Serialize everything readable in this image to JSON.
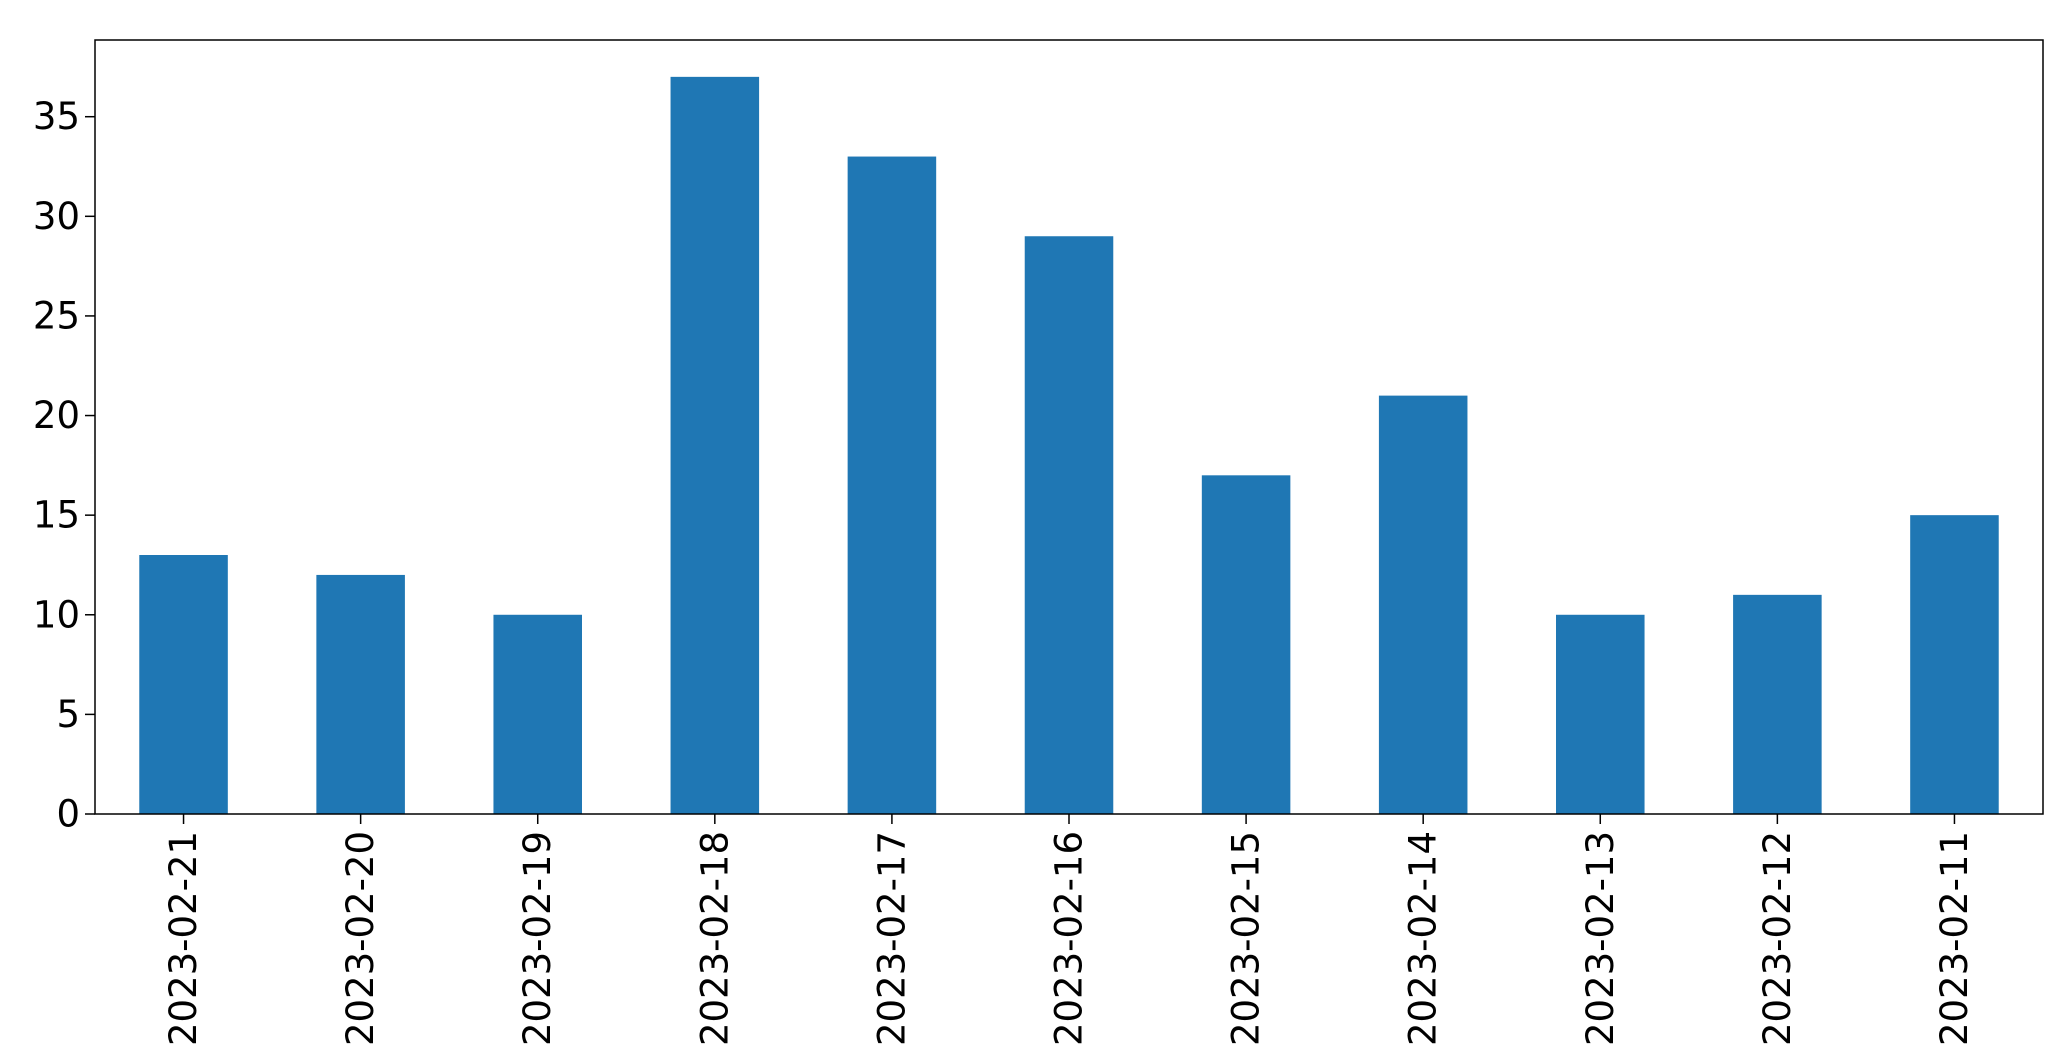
{
  "chart_data": {
    "type": "bar",
    "title": "",
    "xlabel": "",
    "ylabel": "",
    "categories": [
      "2023-02-21",
      "2023-02-20",
      "2023-02-19",
      "2023-02-18",
      "2023-02-17",
      "2023-02-16",
      "2023-02-15",
      "2023-02-14",
      "2023-02-13",
      "2023-02-12",
      "2023-02-11"
    ],
    "values": [
      13,
      12,
      10,
      37,
      33,
      29,
      17,
      21,
      10,
      11,
      15
    ],
    "ylim": [
      0,
      38.85
    ],
    "yticks": [
      0,
      5,
      10,
      15,
      20,
      25,
      30,
      35
    ],
    "grid": false,
    "legend": "none",
    "bar_color": "#1f77b4"
  }
}
